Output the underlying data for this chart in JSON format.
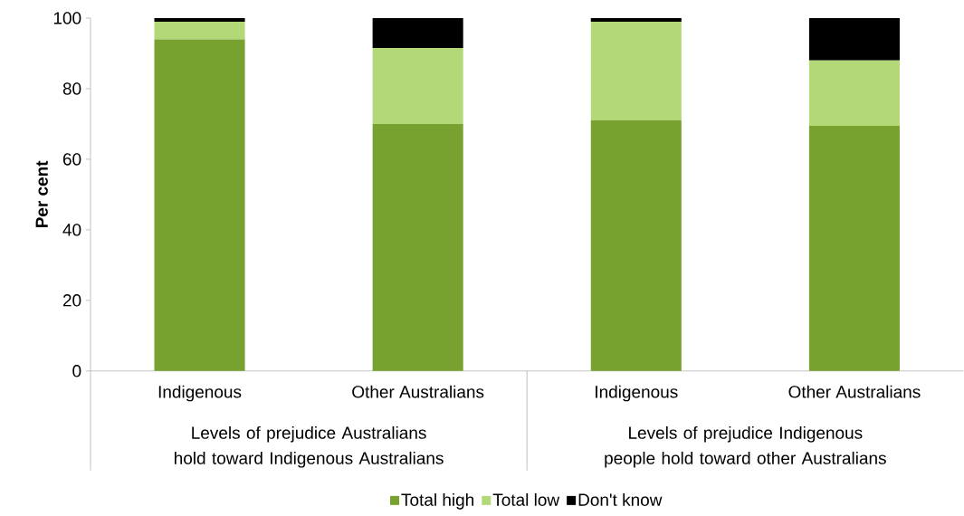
{
  "chart_data": {
    "type": "bar",
    "stacked": true,
    "ylabel": "Per cent",
    "categories": [
      "Indigenous",
      "Other Australians",
      "Indigenous",
      "Other Australians"
    ],
    "series": [
      {
        "name": "Total high",
        "color": "#78a22f",
        "values": [
          94,
          70,
          71,
          69.5
        ]
      },
      {
        "name": "Total low",
        "color": "#b3d877",
        "values": [
          5,
          21.5,
          28,
          18.5
        ]
      },
      {
        "name": "Don't know",
        "color": "#000000",
        "values": [
          1,
          8.5,
          1,
          12
        ]
      }
    ],
    "ylim": [
      0,
      100
    ],
    "yticks": [
      0,
      20,
      40,
      60,
      80,
      100
    ],
    "legend": "bottom",
    "annotations": [
      "Levels of prejudice Australians hold toward Indigenous Australians",
      "Levels of prejudice Indigenous people hold toward other Australians"
    ]
  }
}
